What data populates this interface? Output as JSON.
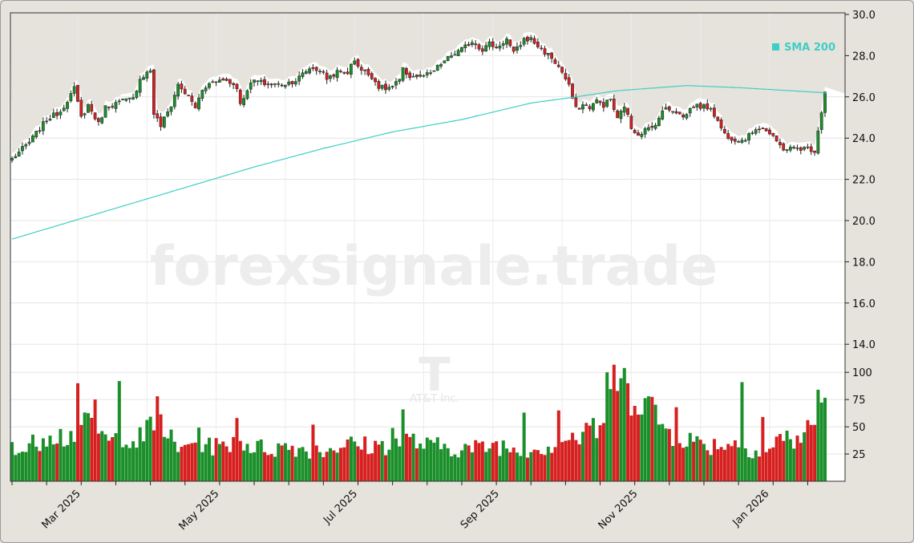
{
  "watermark": {
    "site": "forexsignale.trade",
    "ticker": "T",
    "company": "AT&T Inc."
  },
  "chart_data": {
    "type": "candlestick",
    "price_axis": {
      "min": 13.0,
      "max": 30.0,
      "ticks": [
        "30.0",
        "28.0",
        "26.0",
        "24.0",
        "22.0",
        "20.0",
        "18.0",
        "16.0",
        "14.0"
      ],
      "tick_values": [
        30,
        28,
        26,
        24,
        22,
        20,
        18,
        16,
        14
      ]
    },
    "volume_axis": {
      "min": 0,
      "max": 110,
      "ticks": [
        "100",
        "75",
        "50",
        "25"
      ],
      "tick_values": [
        100,
        75,
        50,
        25
      ]
    },
    "x_axis": {
      "labels": [
        "Mar 2025",
        "May 2025",
        "Jul 2025",
        "Sep 2025",
        "Nov 2025",
        "Jan 2026"
      ],
      "label_index": [
        19,
        59,
        99,
        140,
        180,
        218
      ]
    },
    "legend": {
      "label": "SMA 200",
      "color": "#3dcfc6",
      "placement": "top-right"
    },
    "colors": {
      "up": "#1a8f2a",
      "down": "#d62020",
      "sma": "#3dcfc6"
    },
    "close_anchors": [
      [
        0,
        23.0
      ],
      [
        5,
        23.8
      ],
      [
        10,
        24.9
      ],
      [
        14,
        25.3
      ],
      [
        18,
        26.4
      ],
      [
        20,
        25.0
      ],
      [
        22,
        25.6
      ],
      [
        25,
        24.7
      ],
      [
        27,
        25.5
      ],
      [
        32,
        25.8
      ],
      [
        35,
        25.9
      ],
      [
        37,
        26.9
      ],
      [
        40,
        27.3
      ],
      [
        41,
        25.2
      ],
      [
        43,
        24.6
      ],
      [
        46,
        25.6
      ],
      [
        48,
        26.6
      ],
      [
        51,
        26.0
      ],
      [
        53,
        25.5
      ],
      [
        55,
        26.3
      ],
      [
        58,
        26.8
      ],
      [
        62,
        26.8
      ],
      [
        65,
        26.5
      ],
      [
        66,
        25.6
      ],
      [
        68,
        26.4
      ],
      [
        70,
        26.8
      ],
      [
        74,
        26.6
      ],
      [
        78,
        26.6
      ],
      [
        82,
        26.8
      ],
      [
        86,
        27.4
      ],
      [
        89,
        27.3
      ],
      [
        91,
        26.9
      ],
      [
        94,
        27.2
      ],
      [
        97,
        27.2
      ],
      [
        99,
        27.8
      ],
      [
        101,
        27.3
      ],
      [
        104,
        27.0
      ],
      [
        106,
        26.5
      ],
      [
        108,
        26.4
      ],
      [
        110,
        26.5
      ],
      [
        112,
        26.8
      ],
      [
        113,
        27.3
      ],
      [
        115,
        27.0
      ],
      [
        118,
        27.0
      ],
      [
        121,
        27.1
      ],
      [
        124,
        27.6
      ],
      [
        127,
        28.0
      ],
      [
        130,
        28.3
      ],
      [
        133,
        28.7
      ],
      [
        136,
        28.3
      ],
      [
        138,
        28.6
      ],
      [
        140,
        28.4
      ],
      [
        143,
        28.8
      ],
      [
        145,
        28.1
      ],
      [
        148,
        28.8
      ],
      [
        150,
        28.8
      ],
      [
        153,
        28.3
      ],
      [
        156,
        27.9
      ],
      [
        159,
        27.2
      ],
      [
        161,
        26.5
      ],
      [
        163,
        25.4
      ],
      [
        165,
        25.6
      ],
      [
        167,
        25.5
      ],
      [
        169,
        25.8
      ],
      [
        171,
        25.6
      ],
      [
        173,
        25.9
      ],
      [
        175,
        24.9
      ],
      [
        177,
        25.6
      ],
      [
        179,
        24.5
      ],
      [
        181,
        24.2
      ],
      [
        183,
        24.4
      ],
      [
        185,
        24.5
      ],
      [
        187,
        25.0
      ],
      [
        189,
        25.5
      ],
      [
        192,
        25.3
      ],
      [
        194,
        25.0
      ],
      [
        197,
        25.6
      ],
      [
        200,
        25.5
      ],
      [
        202,
        25.5
      ],
      [
        204,
        24.8
      ],
      [
        206,
        24.2
      ],
      [
        208,
        24.0
      ],
      [
        211,
        23.9
      ],
      [
        213,
        24.1
      ],
      [
        215,
        24.5
      ],
      [
        217,
        24.5
      ],
      [
        219,
        24.2
      ],
      [
        221,
        23.8
      ],
      [
        223,
        23.5
      ],
      [
        225,
        23.5
      ],
      [
        228,
        23.5
      ],
      [
        230,
        23.5
      ],
      [
        232,
        23.4
      ],
      [
        233,
        24.4
      ],
      [
        234,
        25.3
      ],
      [
        235,
        26.3
      ]
    ],
    "sma_anchors": [
      [
        0,
        19.1
      ],
      [
        30,
        20.6
      ],
      [
        50,
        21.6
      ],
      [
        70,
        22.6
      ],
      [
        90,
        23.5
      ],
      [
        110,
        24.3
      ],
      [
        130,
        24.9
      ],
      [
        150,
        25.7
      ],
      [
        163,
        26.0
      ],
      [
        175,
        26.3
      ],
      [
        195,
        26.55
      ],
      [
        210,
        26.45
      ],
      [
        225,
        26.3
      ],
      [
        235,
        26.2
      ]
    ],
    "volume_anchors": [
      [
        0,
        38
      ],
      [
        3,
        27
      ],
      [
        7,
        36
      ],
      [
        11,
        48
      ],
      [
        15,
        40
      ],
      [
        19,
        47
      ],
      [
        24,
        52
      ],
      [
        28,
        34
      ],
      [
        33,
        46
      ],
      [
        36,
        36
      ],
      [
        40,
        48
      ],
      [
        43,
        56
      ],
      [
        48,
        26
      ],
      [
        52,
        40
      ],
      [
        56,
        36
      ],
      [
        60,
        30
      ],
      [
        65,
        40
      ],
      [
        70,
        31
      ],
      [
        75,
        30
      ],
      [
        80,
        32
      ],
      [
        85,
        30
      ],
      [
        90,
        28
      ],
      [
        95,
        34
      ],
      [
        100,
        33
      ],
      [
        105,
        32
      ],
      [
        110,
        35
      ],
      [
        115,
        38
      ],
      [
        120,
        32
      ],
      [
        125,
        32
      ],
      [
        130,
        30
      ],
      [
        135,
        30
      ],
      [
        140,
        34
      ],
      [
        145,
        30
      ],
      [
        150,
        30
      ],
      [
        155,
        32
      ],
      [
        160,
        40
      ],
      [
        165,
        40
      ],
      [
        170,
        50
      ],
      [
        173,
        70
      ],
      [
        176,
        80
      ],
      [
        180,
        85
      ],
      [
        183,
        78
      ],
      [
        186,
        60
      ],
      [
        190,
        45
      ],
      [
        194,
        42
      ],
      [
        198,
        35
      ],
      [
        202,
        33
      ],
      [
        206,
        35
      ],
      [
        210,
        34
      ],
      [
        214,
        30
      ],
      [
        218,
        26
      ],
      [
        222,
        40
      ],
      [
        226,
        38
      ],
      [
        230,
        45
      ],
      [
        233,
        62
      ],
      [
        235,
        72
      ]
    ],
    "volume_spikes": [
      [
        19,
        90
      ],
      [
        24,
        75
      ],
      [
        31,
        92
      ],
      [
        42,
        78
      ],
      [
        65,
        58
      ],
      [
        87,
        52
      ],
      [
        110,
        49
      ],
      [
        113,
        66
      ],
      [
        148,
        63
      ],
      [
        158,
        65
      ],
      [
        168,
        58
      ],
      [
        172,
        100
      ],
      [
        174,
        107
      ],
      [
        177,
        104
      ],
      [
        178,
        90
      ],
      [
        192,
        68
      ],
      [
        211,
        91
      ],
      [
        217,
        59
      ],
      [
        233,
        84
      ]
    ],
    "n_bars": 236,
    "seed": 7
  }
}
